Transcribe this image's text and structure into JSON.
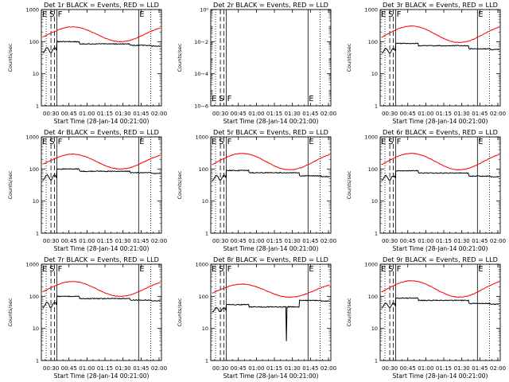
{
  "figure": {
    "time_axis_label": "Start Time (28-Jan-14 00:21:00)",
    "y_axis_label": "Counts/sec",
    "time_tick_labels": [
      "00:30",
      "00:45",
      "01:00",
      "01:15",
      "01:30",
      "01:45",
      "02:00"
    ],
    "log_tick_labels": [
      "1",
      "10",
      "100",
      "1000"
    ],
    "empty_tick_labels": [
      "10−6",
      "10−4",
      "10−2",
      "10⁰"
    ],
    "marker_letters": {
      "E": "E",
      "S": "S",
      "F": "F"
    },
    "colors": {
      "events": "#000000",
      "lld": "#ff0000",
      "axes": "#000000"
    }
  },
  "chart_data": [
    {
      "title": "Det  1r  BLACK = Events, RED = LLD",
      "type": "line",
      "scale": "log",
      "empty": false,
      "xlim_minutes": [
        22,
        122
      ],
      "ylim": [
        1,
        1000
      ],
      "markers_minutes": {
        "E1": 26,
        "S": 30,
        "S2": 33,
        "F": 35,
        "E2": 103,
        "F2": 113
      },
      "lld_base": 170,
      "lld_amp": 1.7,
      "events_base": 100,
      "events_pre_ratio": 0.55,
      "drops": [
        [
          54,
          0.85
        ],
        [
          96,
          0.9
        ],
        [
          114,
          0.95
        ]
      ]
    },
    {
      "title": "Det  2r  BLACK = Events, RED = LLD",
      "type": "line",
      "scale": "log",
      "empty": true,
      "xlim_minutes": [
        22,
        122
      ],
      "ylim": [
        1e-06,
        1
      ],
      "markers_minutes": {
        "E1": 26,
        "S": 30,
        "S2": 33,
        "F": 35,
        "E2": 103,
        "F2": 113
      }
    },
    {
      "title": "Det  3r  BLACK = Events, RED = LLD",
      "type": "line",
      "scale": "log",
      "empty": false,
      "xlim_minutes": [
        22,
        122
      ],
      "ylim": [
        1,
        1000
      ],
      "markers_minutes": {
        "E1": 26,
        "S": 30,
        "S2": 33,
        "F": 35,
        "E2": 103,
        "F2": 113
      },
      "lld_base": 170,
      "lld_amp": 1.8,
      "events_base": 88,
      "events_pre_ratio": 0.6,
      "drops": [
        [
          54,
          0.85
        ],
        [
          96,
          0.8
        ],
        [
          114,
          0.95
        ]
      ]
    },
    {
      "title": "Det  4r  BLACK = Events, RED = LLD",
      "type": "line",
      "scale": "log",
      "empty": false,
      "xlim_minutes": [
        22,
        122
      ],
      "ylim": [
        1,
        1000
      ],
      "markers_minutes": {
        "E1": 26,
        "S": 30,
        "S2": 33,
        "F": 35,
        "E2": 103,
        "F2": 113
      },
      "lld_base": 170,
      "lld_amp": 1.7,
      "events_base": 100,
      "events_pre_ratio": 0.55,
      "drops": [
        [
          54,
          0.85
        ],
        [
          96,
          0.9
        ],
        [
          114,
          0.95
        ]
      ]
    },
    {
      "title": "Det  5r  BLACK = Events, RED = LLD",
      "type": "line",
      "scale": "log",
      "empty": false,
      "xlim_minutes": [
        22,
        122
      ],
      "ylim": [
        1,
        1000
      ],
      "markers_minutes": {
        "E1": 26,
        "S": 30,
        "S2": 33,
        "F": 35,
        "E2": 103,
        "F2": 113
      },
      "lld_base": 170,
      "lld_amp": 1.8,
      "events_base": 90,
      "events_pre_ratio": 0.6,
      "drops": [
        [
          54,
          0.85
        ],
        [
          96,
          0.8
        ],
        [
          114,
          0.95
        ]
      ]
    },
    {
      "title": "Det  6r  BLACK = Events, RED = LLD",
      "type": "line",
      "scale": "log",
      "empty": false,
      "xlim_minutes": [
        22,
        122
      ],
      "ylim": [
        1,
        1000
      ],
      "markers_minutes": {
        "E1": 26,
        "S": 30,
        "S2": 33,
        "F": 35,
        "E2": 103,
        "F2": 113
      },
      "lld_base": 170,
      "lld_amp": 1.8,
      "events_base": 88,
      "events_pre_ratio": 0.6,
      "drops": [
        [
          54,
          0.85
        ],
        [
          96,
          0.8
        ],
        [
          114,
          0.95
        ]
      ]
    },
    {
      "title": "Det  7r  BLACK = Events, RED = LLD",
      "type": "line",
      "scale": "log",
      "empty": false,
      "xlim_minutes": [
        22,
        122
      ],
      "ylim": [
        1,
        1000
      ],
      "markers_minutes": {
        "E1": 26,
        "S": 30,
        "S2": 33,
        "F": 35,
        "E2": 103,
        "F2": 113
      },
      "lld_base": 170,
      "lld_amp": 1.7,
      "events_base": 100,
      "events_pre_ratio": 0.55,
      "drops": [
        [
          54,
          0.85
        ],
        [
          96,
          0.9
        ],
        [
          114,
          0.95
        ]
      ]
    },
    {
      "title": "Det  8r  BLACK = Events, RED = LLD",
      "type": "line",
      "scale": "log",
      "empty": false,
      "xlim_minutes": [
        22,
        122
      ],
      "ylim": [
        1,
        1000
      ],
      "markers_minutes": {
        "E1": 26,
        "S": 30,
        "S2": 33,
        "F": 35,
        "E2": 103,
        "F2": 113
      },
      "lld_base": 150,
      "lld_amp": 1.6,
      "events_base": 55,
      "events_pre_ratio": 0.7,
      "drops": [
        [
          54,
          0.85
        ],
        [
          96,
          1.6
        ],
        [
          114,
          0.95
        ]
      ],
      "spike_minute": 85,
      "spike_value": 4
    },
    {
      "title": "Det  9r  BLACK = Events, RED = LLD",
      "type": "line",
      "scale": "log",
      "empty": false,
      "xlim_minutes": [
        22,
        122
      ],
      "ylim": [
        1,
        1000
      ],
      "markers_minutes": {
        "E1": 26,
        "S": 30,
        "S2": 33,
        "F": 35,
        "E2": 103,
        "F2": 113
      },
      "lld_base": 170,
      "lld_amp": 1.8,
      "events_base": 88,
      "events_pre_ratio": 0.6,
      "drops": [
        [
          54,
          0.85
        ],
        [
          96,
          0.8
        ],
        [
          114,
          0.95
        ]
      ]
    }
  ]
}
